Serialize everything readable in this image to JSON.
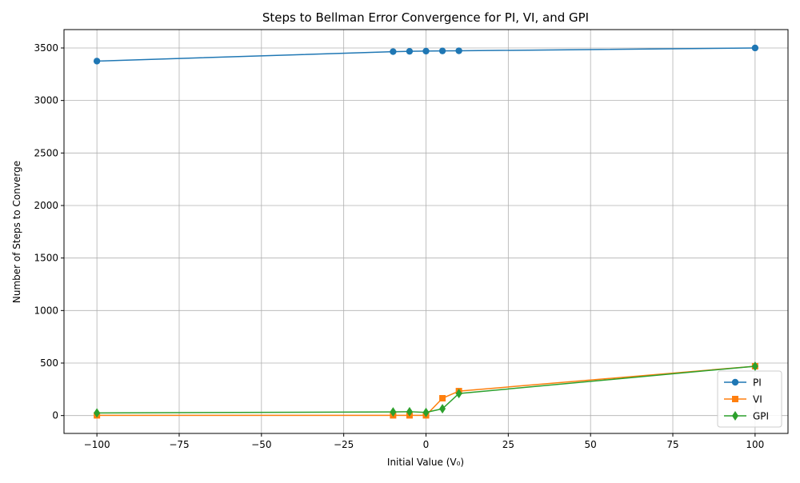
{
  "chart_data": {
    "type": "line",
    "title": "Steps to Bellman Error Convergence for PI, VI, and GPI",
    "xlabel": "Initial Value (V₀)",
    "ylabel": "Number of Steps to Converge",
    "xlim": [
      -110,
      110
    ],
    "ylim": [
      -170,
      3675
    ],
    "xticks": [
      -100,
      -75,
      -50,
      -25,
      0,
      25,
      50,
      75,
      100
    ],
    "yticks": [
      0,
      500,
      1000,
      1500,
      2000,
      2500,
      3000,
      3500
    ],
    "grid": true,
    "legend_position": "lower-right",
    "x": [
      -100,
      -10,
      -5,
      0,
      5,
      10,
      100
    ],
    "series": [
      {
        "name": "PI",
        "color": "#1f77b4",
        "marker": "circle",
        "values": [
          3375,
          3465,
          3468,
          3470,
          3472,
          3473,
          3500
        ]
      },
      {
        "name": "VI",
        "color": "#ff7f0e",
        "marker": "square",
        "values": [
          2,
          2,
          2,
          2,
          165,
          233,
          470
        ]
      },
      {
        "name": "GPI",
        "color": "#2ca02c",
        "marker": "diamond",
        "values": [
          25,
          35,
          37,
          30,
          65,
          210,
          470
        ]
      }
    ]
  }
}
